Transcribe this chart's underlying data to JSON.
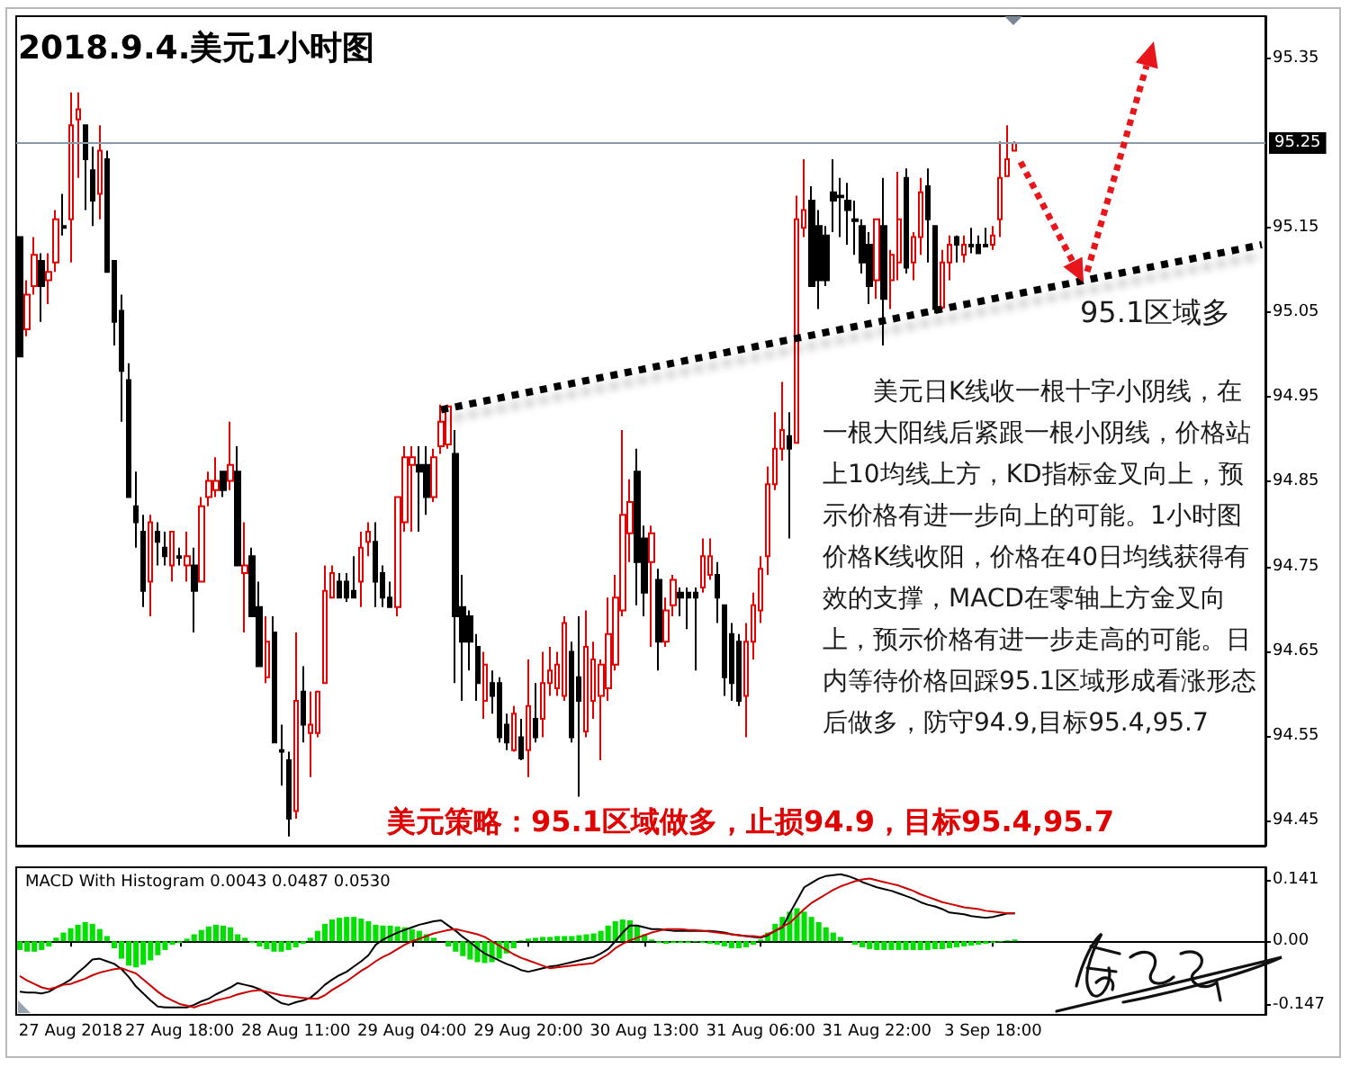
{
  "chart_data": [
    {
      "type": "candlestick",
      "title": "2018.9.4.美元1小时图",
      "categories": [
        null,
        null,
        null,
        null,
        null,
        null,
        null,
        null,
        null,
        null,
        null,
        null,
        null,
        null,
        null,
        null,
        null,
        null,
        null,
        null,
        null,
        null,
        null,
        null,
        null,
        null,
        null,
        null,
        null,
        null,
        null,
        null,
        null,
        null,
        null,
        null,
        null,
        null,
        null,
        null,
        null,
        null,
        null,
        null,
        null,
        null,
        null,
        null,
        null,
        null,
        null,
        null,
        null,
        null,
        null,
        null,
        null,
        null,
        null,
        null,
        null,
        null,
        null,
        null,
        null,
        null,
        null,
        null,
        null,
        null,
        null,
        null,
        null,
        null,
        null,
        null,
        null,
        null,
        null,
        null,
        null,
        null,
        null,
        null,
        null,
        null,
        null,
        null,
        null,
        null,
        null,
        null,
        null,
        null,
        null,
        null,
        null,
        null,
        null,
        null,
        null,
        null,
        null,
        null,
        null,
        null,
        null,
        null,
        null,
        null,
        null,
        null,
        null,
        null,
        null,
        null,
        null,
        null,
        null,
        null,
        null,
        null,
        null,
        null,
        null,
        null,
        null,
        null,
        null,
        null,
        null,
        null,
        null,
        null,
        null,
        null,
        null,
        null,
        null,
        null,
        null,
        null,
        null,
        null,
        null,
        null,
        null,
        null,
        null,
        null,
        null,
        null,
        null,
        null,
        null,
        null,
        null,
        null,
        null,
        null,
        null,
        null,
        null,
        null,
        null,
        null,
        null,
        null,
        null,
        null,
        null,
        null
      ],
      "ylim": [
        94.42,
        95.4
      ],
      "yticks": [
        95.35,
        95.15,
        95.05,
        94.95,
        94.85,
        94.75,
        94.65,
        94.55,
        94.45
      ],
      "ohlc": [
        [
          95.139,
          95.139,
          94.998,
          94.998
        ],
        [
          95.03,
          95.088,
          95.022,
          95.071
        ],
        [
          95.081,
          95.139,
          95.071,
          95.118
        ],
        [
          95.111,
          95.12,
          95.039,
          95.081
        ],
        [
          95.088,
          95.12,
          95.06,
          95.098
        ],
        [
          95.109,
          95.171,
          95.098,
          95.16
        ],
        [
          95.152,
          95.19,
          95.141,
          95.15
        ],
        [
          95.16,
          95.31,
          95.109,
          95.271
        ],
        [
          95.278,
          95.31,
          95.209,
          95.29
        ],
        [
          95.271,
          95.271,
          95.171,
          95.231
        ],
        [
          95.218,
          95.246,
          95.152,
          95.182
        ],
        [
          95.19,
          95.271,
          95.16,
          95.241
        ],
        [
          95.231,
          95.241,
          95.098,
          95.098
        ],
        [
          95.111,
          95.111,
          95.011,
          95.039
        ],
        [
          95.052,
          95.071,
          94.921,
          94.981
        ],
        [
          94.97,
          94.99,
          94.832,
          94.832
        ],
        [
          94.821,
          94.862,
          94.772,
          94.802
        ],
        [
          94.791,
          94.811,
          94.702,
          94.721
        ],
        [
          94.732,
          94.811,
          94.691,
          94.802
        ],
        [
          94.791,
          94.802,
          94.751,
          94.779
        ],
        [
          94.772,
          94.791,
          94.751,
          94.762
        ],
        [
          94.751,
          94.791,
          94.732,
          94.791
        ],
        [
          94.762,
          94.772,
          94.751,
          94.76
        ],
        [
          94.751,
          94.791,
          94.732,
          94.762
        ],
        [
          94.751,
          94.772,
          94.672,
          94.721
        ],
        [
          94.732,
          94.832,
          94.732,
          94.821
        ],
        [
          94.832,
          94.862,
          94.821,
          94.851
        ],
        [
          94.84,
          94.879,
          94.832,
          94.851
        ],
        [
          94.862,
          94.862,
          94.832,
          94.84
        ],
        [
          94.851,
          94.921,
          94.84,
          94.87
        ],
        [
          94.862,
          94.892,
          94.751,
          94.751
        ],
        [
          94.742,
          94.802,
          94.672,
          94.751
        ],
        [
          94.762,
          94.772,
          94.691,
          94.691
        ],
        [
          94.702,
          94.732,
          94.632,
          94.632
        ],
        [
          94.619,
          94.691,
          94.612,
          94.661
        ],
        [
          94.672,
          94.691,
          94.542,
          94.542
        ],
        [
          94.533,
          94.563,
          94.491,
          94.531
        ],
        [
          94.521,
          94.531,
          94.431,
          94.452
        ],
        [
          94.461,
          94.672,
          94.452,
          94.591
        ],
        [
          94.602,
          94.632,
          94.542,
          94.563
        ],
        [
          94.553,
          94.602,
          94.501,
          94.563
        ],
        [
          94.553,
          94.602,
          94.548,
          94.602
        ],
        [
          94.612,
          94.751,
          94.612,
          94.721
        ],
        [
          94.713,
          94.751,
          94.713,
          94.742
        ],
        [
          94.732,
          94.742,
          94.713,
          94.713
        ],
        [
          94.732,
          94.742,
          94.708,
          94.713
        ],
        [
          94.721,
          94.762,
          94.713,
          94.713
        ],
        [
          94.732,
          94.791,
          94.702,
          94.772
        ],
        [
          94.779,
          94.802,
          94.762,
          94.791
        ],
        [
          94.779,
          94.802,
          94.702,
          94.732
        ],
        [
          94.742,
          94.751,
          94.702,
          94.713
        ],
        [
          94.713,
          94.732,
          94.702,
          94.702
        ],
        [
          94.702,
          94.832,
          94.691,
          94.832
        ],
        [
          94.802,
          94.892,
          94.791,
          94.879
        ],
        [
          94.87,
          94.892,
          94.791,
          94.879
        ],
        [
          94.87,
          94.892,
          94.791,
          94.862
        ],
        [
          94.87,
          94.892,
          94.811,
          94.832
        ],
        [
          94.832,
          94.889,
          94.826,
          94.879
        ],
        [
          94.892,
          94.941,
          94.883,
          94.921
        ],
        [
          94.894,
          94.941,
          94.889,
          94.939
        ],
        [
          94.883,
          94.911,
          94.612,
          94.691
        ],
        [
          94.702,
          94.74,
          94.591,
          94.661
        ],
        [
          94.691,
          94.698,
          94.627,
          94.661
        ],
        [
          94.655,
          94.67,
          94.591,
          94.612
        ],
        [
          94.591,
          94.649,
          94.57,
          94.634
        ],
        [
          94.612,
          94.627,
          94.576,
          94.597
        ],
        [
          94.612,
          94.619,
          94.542,
          94.548
        ],
        [
          94.563,
          94.576,
          94.533,
          94.542
        ],
        [
          94.533,
          94.585,
          94.531,
          94.576
        ],
        [
          94.548,
          94.57,
          94.521,
          94.523
        ],
        [
          94.533,
          94.64,
          94.501,
          94.585
        ],
        [
          94.57,
          94.612,
          94.542,
          94.548
        ],
        [
          94.57,
          94.649,
          94.548,
          94.612
        ],
        [
          94.612,
          94.655,
          94.597,
          94.627
        ],
        [
          94.606,
          94.649,
          94.597,
          94.634
        ],
        [
          94.597,
          94.691,
          94.591,
          94.683
        ],
        [
          94.649,
          94.661,
          94.542,
          94.548
        ],
        [
          94.619,
          94.691,
          94.478,
          94.591
        ],
        [
          94.555,
          94.698,
          94.548,
          94.655
        ],
        [
          94.591,
          94.661,
          94.57,
          94.64
        ],
        [
          94.597,
          94.64,
          94.521,
          94.634
        ],
        [
          94.606,
          94.713,
          94.591,
          94.67
        ],
        [
          94.634,
          94.74,
          94.627,
          94.713
        ],
        [
          94.698,
          94.911,
          94.691,
          94.811
        ],
        [
          94.789,
          94.853,
          94.755,
          94.826
        ],
        [
          94.862,
          94.889,
          94.704,
          94.755
        ],
        [
          94.783,
          94.798,
          94.691,
          94.719
        ],
        [
          94.755,
          94.798,
          94.655,
          94.789
        ],
        [
          94.734,
          94.747,
          94.627,
          94.661
        ],
        [
          94.661,
          94.713,
          94.655,
          94.698
        ],
        [
          94.704,
          94.74,
          94.691,
          94.734
        ],
        [
          94.719,
          94.725,
          94.691,
          94.713
        ],
        [
          94.719,
          94.725,
          94.676,
          94.713
        ],
        [
          94.719,
          94.725,
          94.627,
          94.713
        ],
        [
          94.725,
          94.783,
          94.719,
          94.762
        ],
        [
          94.74,
          94.783,
          94.734,
          94.762
        ],
        [
          94.74,
          94.755,
          94.683,
          94.713
        ],
        [
          94.704,
          94.704,
          94.597,
          94.619
        ],
        [
          94.67,
          94.683,
          94.591,
          94.612
        ],
        [
          94.661,
          94.67,
          94.585,
          94.591
        ],
        [
          94.597,
          94.683,
          94.548,
          94.661
        ],
        [
          94.661,
          94.719,
          94.64,
          94.704
        ],
        [
          94.698,
          94.762,
          94.683,
          94.747
        ],
        [
          94.762,
          94.868,
          94.74,
          94.847
        ],
        [
          94.847,
          94.932,
          94.84,
          94.889
        ],
        [
          94.889,
          94.968,
          94.875,
          94.911
        ],
        [
          94.904,
          94.932,
          94.783,
          94.889
        ],
        [
          94.896,
          95.188,
          94.896,
          95.16
        ],
        [
          95.15,
          95.231,
          95.139,
          95.171
        ],
        [
          95.182,
          95.199,
          95.081,
          95.081
        ],
        [
          95.152,
          95.171,
          95.054,
          95.088
        ],
        [
          95.141,
          95.152,
          95.081,
          95.088
        ],
        [
          95.192,
          95.231,
          95.145,
          95.182
        ],
        [
          95.188,
          95.209,
          95.139,
          95.186
        ],
        [
          95.182,
          95.203,
          95.13,
          95.171
        ],
        [
          95.16,
          95.182,
          95.118,
          95.158
        ],
        [
          95.152,
          95.16,
          95.096,
          95.109
        ],
        [
          95.13,
          95.145,
          95.06,
          95.081
        ],
        [
          95.088,
          95.16,
          95.066,
          95.16
        ],
        [
          95.152,
          95.209,
          95.011,
          95.066
        ],
        [
          95.088,
          95.124,
          95.054,
          95.118
        ],
        [
          95.109,
          95.216,
          95.088,
          95.16
        ],
        [
          95.209,
          95.22,
          95.096,
          95.103
        ],
        [
          95.109,
          95.145,
          95.088,
          95.139
        ],
        [
          95.139,
          95.209,
          95.118,
          95.192
        ],
        [
          95.199,
          95.22,
          95.109,
          95.16
        ],
        [
          95.152,
          95.152,
          95.049,
          95.054
        ],
        [
          95.056,
          95.124,
          95.054,
          95.109
        ],
        [
          95.109,
          95.141,
          95.088,
          95.13
        ],
        [
          95.139,
          95.141,
          95.109,
          95.13
        ],
        [
          95.118,
          95.141,
          95.109,
          95.13
        ],
        [
          95.13,
          95.15,
          95.12,
          95.128
        ],
        [
          95.13,
          95.141,
          95.12,
          95.12
        ],
        [
          95.13,
          95.15,
          95.128,
          95.128
        ],
        [
          95.13,
          95.152,
          95.124,
          95.141
        ],
        [
          95.16,
          95.252,
          95.139,
          95.209
        ],
        [
          95.211,
          95.271,
          95.211,
          95.231
        ],
        [
          95.241,
          95.252,
          95.241,
          95.25
        ],
        null,
        null,
        null,
        null,
        null,
        null,
        null,
        null,
        null,
        null,
        null,
        null,
        null,
        null,
        null,
        null,
        null,
        null,
        null,
        null,
        null,
        null,
        null,
        null,
        null,
        null,
        null,
        null,
        null,
        null,
        null,
        null,
        null,
        null
      ],
      "colors": [
        "#000000",
        "#e00000",
        "#e00000",
        "#000000",
        "#e00000",
        "#e00000",
        "#000000",
        "#e00000",
        "#e00000",
        "#000000",
        "#000000",
        "#e00000",
        "#000000",
        "#000000",
        "#000000",
        "#000000",
        "#000000",
        "#000000",
        "#e00000",
        "#000000",
        "#000000",
        "#e00000",
        "#000000",
        "#e00000",
        "#000000",
        "#e00000",
        "#e00000",
        "#e00000",
        "#000000",
        "#e00000",
        "#000000",
        "#e00000",
        "#000000",
        "#000000",
        "#e00000",
        "#000000",
        "#000000",
        "#000000",
        "#e00000",
        "#000000",
        "#e00000",
        "#e00000",
        "#e00000",
        "#e00000",
        "#000000",
        "#000000",
        "#000000",
        "#e00000",
        "#e00000",
        "#000000",
        "#000000",
        "#000000",
        "#e00000",
        "#e00000",
        "#e00000",
        "#000000",
        "#000000",
        "#e00000",
        "#e00000",
        "#e00000",
        "#000000",
        "#000000",
        "#000000",
        "#000000",
        "#e00000",
        "#000000",
        "#000000",
        "#000000",
        "#e00000",
        "#000000",
        "#e00000",
        "#000000",
        "#e00000",
        "#e00000",
        "#e00000",
        "#e00000",
        "#000000",
        "#000000",
        "#e00000",
        "#e00000",
        "#e00000",
        "#e00000",
        "#e00000",
        "#e00000",
        "#e00000",
        "#000000",
        "#000000",
        "#e00000",
        "#000000",
        "#e00000",
        "#e00000",
        "#000000",
        "#000000",
        "#000000",
        "#e00000",
        "#e00000",
        "#000000",
        "#000000",
        "#000000",
        "#000000",
        "#e00000",
        "#e00000",
        "#e00000",
        "#e00000",
        "#e00000",
        "#e00000",
        "#000000",
        "#e00000",
        "#e00000",
        "#000000",
        "#000000",
        "#000000",
        "#000000",
        "#000000",
        "#000000",
        "#000000",
        "#000000",
        "#000000",
        "#e00000",
        "#000000",
        "#e00000",
        "#e00000",
        "#000000",
        "#e00000",
        "#e00000",
        "#000000",
        "#000000",
        "#e00000",
        "#e00000",
        "#000000",
        "#e00000",
        "#000000",
        "#000000",
        "#000000",
        "#e00000",
        "#e00000",
        "#e00000",
        "#e00000",
        null,
        null,
        null,
        null,
        null,
        null,
        null,
        null,
        null,
        null,
        null,
        null,
        null,
        null,
        null,
        null,
        null,
        null,
        null,
        null,
        null,
        null,
        null,
        null,
        null,
        null,
        null,
        null,
        null,
        null,
        null,
        null,
        null,
        null
      ],
      "series": [
        {
          "type": "line",
          "color": "#000000",
          "line_style": "dotted",
          "values": [
            null,
            null,
            null,
            null,
            null,
            null,
            null,
            null,
            null,
            null,
            null,
            null,
            null,
            null,
            null,
            null,
            null,
            null,
            null,
            null,
            null,
            null,
            null,
            null,
            null,
            null,
            null,
            null,
            null,
            null,
            null,
            null,
            null,
            null,
            null,
            null,
            null,
            null,
            null,
            null,
            null,
            null,
            null,
            null,
            null,
            null,
            null,
            null,
            null,
            null,
            null,
            null,
            null,
            null,
            null,
            null,
            null,
            null,
            94.935,
            null,
            null,
            null,
            null,
            null,
            null,
            null,
            null,
            null,
            null,
            null,
            null,
            null,
            null,
            null,
            null,
            null,
            null,
            null,
            null,
            null,
            null,
            null,
            null,
            null,
            null,
            null,
            null,
            null,
            null,
            null,
            null,
            null,
            null,
            null,
            null,
            null,
            null,
            null,
            null,
            null,
            null,
            null,
            null,
            null,
            null,
            null,
            null,
            null,
            null,
            null,
            null,
            null,
            null,
            null,
            null,
            null,
            null,
            null,
            null,
            null,
            null,
            null,
            null,
            null,
            null,
            null,
            null,
            null,
            null,
            null,
            null,
            null,
            null,
            null,
            null,
            null,
            null,
            null,
            null,
            null,
            null,
            null,
            null,
            null,
            null,
            null,
            null,
            null,
            null,
            null,
            null,
            null,
            null,
            null,
            null,
            null,
            null,
            null,
            null,
            null,
            null,
            null,
            null,
            null,
            null,
            null,
            null,
            null,
            null,
            null,
            null,
            95.13
          ]
        }
      ],
      "ref_lines": [
        {
          "axis": "y",
          "value": 95.25,
          "label": "95.25",
          "color": "#8a99a6"
        }
      ],
      "annotations": [
        "95.1区域多",
        "　　美元日K线收一根十字小阴线，在一根大阳线后紧跟一根小阴线，价格站上10均线上方，KD指标金叉向上，预示价格有进一步向上的可能。1小时图价格K线收阳，价格在40日均线获得有效的支撑，MACD在零轴上方金叉向上，预示价格有进一步走高的可能。日内等待价格回踩95.1区域形成看涨形态后做多，防守94.9,目标95.4,95.7",
        "美元策略：95.1区域做多，止损94.9，目标95.4,95.7"
      ]
    },
    {
      "type": "bar",
      "title": "MACD With Histogram 0.0043 0.0487 0.0530",
      "categories": [
        null,
        null,
        null,
        null,
        null,
        null,
        null,
        "27 Aug 2018",
        null,
        null,
        null,
        null,
        null,
        null,
        null,
        null,
        null,
        null,
        null,
        null,
        null,
        null,
        "27 Aug 18:00",
        null,
        null,
        null,
        null,
        null,
        null,
        null,
        null,
        null,
        null,
        null,
        null,
        null,
        null,
        null,
        "28 Aug 11:00",
        null,
        null,
        null,
        null,
        null,
        null,
        null,
        null,
        null,
        null,
        null,
        null,
        null,
        null,
        null,
        "29 Aug 04:00",
        null,
        null,
        null,
        null,
        null,
        null,
        null,
        null,
        null,
        null,
        null,
        null,
        null,
        null,
        null,
        "29 Aug 20:00",
        null,
        null,
        null,
        null,
        null,
        null,
        null,
        null,
        null,
        null,
        null,
        null,
        null,
        null,
        null,
        "30 Aug 13:00",
        null,
        null,
        null,
        null,
        null,
        null,
        null,
        null,
        null,
        null,
        null,
        null,
        null,
        null,
        null,
        "31 Aug 06:00",
        null,
        null,
        null,
        null,
        null,
        null,
        null,
        null,
        null,
        null,
        null,
        null,
        null,
        null,
        null,
        "31 Aug 22:00",
        null,
        null,
        null,
        null,
        null,
        null,
        null,
        null,
        null,
        null,
        null,
        null,
        null,
        null,
        null,
        "3 Sep 18:00",
        null,
        null,
        null,
        null,
        null,
        null,
        null,
        null,
        null,
        null,
        null,
        null,
        null,
        null,
        null,
        null,
        null,
        null,
        null,
        null,
        null,
        null,
        null,
        null,
        null,
        null,
        null,
        null,
        null,
        null,
        null,
        null,
        null,
        null,
        null,
        null,
        null
      ],
      "ylim": [
        -0.169,
        0.17
      ],
      "yticks": [
        0.141,
        {
          "value": 0,
          "label": "0.00"
        },
        -0.147
      ],
      "series": [
        {
          "color": "#00e000",
          "values": [
            -0.02,
            -0.024,
            -0.024,
            -0.02,
            -0.012,
            0.008,
            0.02,
            0.03,
            0.038,
            0.044,
            0.04,
            0.028,
            0.012,
            -0.016,
            -0.04,
            -0.056,
            -0.06,
            -0.054,
            -0.044,
            -0.032,
            -0.02,
            -0.008,
            -0.004,
            0.006,
            0.016,
            0.026,
            0.034,
            0.038,
            0.036,
            0.032,
            0.016,
            0.008,
            -0.004,
            -0.012,
            -0.018,
            -0.024,
            -0.024,
            -0.02,
            -0.014,
            -0.006,
            0.008,
            0.024,
            0.04,
            0.05,
            0.054,
            0.056,
            0.056,
            0.052,
            0.046,
            0.038,
            0.036,
            0.036,
            0.034,
            0.032,
            0.028,
            0.024,
            0.016,
            0.008,
            0,
            -0.012,
            -0.024,
            -0.034,
            -0.042,
            -0.048,
            -0.05,
            -0.048,
            -0.04,
            -0.028,
            -0.016,
            0.002,
            0.006,
            0.008,
            0.01,
            0.01,
            0.012,
            0.012,
            0.012,
            0.014,
            0.016,
            0.018,
            0.024,
            0.036,
            0.046,
            0.05,
            0.048,
            0.036,
            0.016,
            0.004,
            -0.004,
            -0.006,
            -0.004,
            -0.004,
            -0.004,
            -0.002,
            -0.004,
            -0.006,
            -0.008,
            -0.012,
            -0.016,
            -0.016,
            -0.014,
            -0.008,
            0.004,
            0.02,
            0.04,
            0.056,
            0.068,
            0.076,
            0.068,
            0.056,
            0.044,
            0.032,
            0.02,
            0.01,
            0,
            -0.008,
            -0.014,
            -0.018,
            -0.02,
            -0.02,
            -0.02,
            -0.02,
            -0.02,
            -0.02,
            -0.02,
            -0.02,
            -0.018,
            -0.018,
            -0.016,
            -0.014,
            -0.012,
            -0.01,
            -0.008,
            -0.006,
            -0.004,
            -0.002,
            0.002,
            0.004,
            null,
            null,
            null,
            null,
            null,
            null,
            null,
            null,
            null,
            null,
            null,
            null,
            null,
            null,
            null,
            null,
            null,
            null,
            null,
            null,
            null,
            null,
            null,
            null,
            null,
            null,
            null,
            null,
            null,
            null,
            null,
            null,
            null,
            null
          ]
        },
        {
          "type": "line",
          "color": "#000000",
          "values": [
            -0.116,
            -0.118,
            -0.118,
            -0.12,
            -0.116,
            -0.106,
            -0.098,
            -0.088,
            -0.072,
            -0.058,
            -0.042,
            -0.04,
            -0.046,
            -0.052,
            -0.064,
            -0.082,
            -0.104,
            -0.12,
            -0.136,
            -0.15,
            -0.152,
            -0.152,
            -0.152,
            -0.152,
            -0.146,
            -0.138,
            -0.132,
            -0.122,
            -0.114,
            -0.106,
            -0.096,
            -0.1,
            -0.104,
            -0.11,
            -0.12,
            -0.132,
            -0.142,
            -0.146,
            -0.14,
            -0.136,
            -0.13,
            -0.116,
            -0.1,
            -0.088,
            -0.078,
            -0.07,
            -0.058,
            -0.046,
            -0.032,
            -0.008,
            0.004,
            0.012,
            0.02,
            0.026,
            0.032,
            0.038,
            0.042,
            0.046,
            0.048,
            0.036,
            0.024,
            0.01,
            -0.002,
            -0.016,
            -0.028,
            -0.036,
            -0.044,
            -0.052,
            -0.058,
            -0.066,
            -0.07,
            -0.066,
            -0.062,
            -0.058,
            -0.056,
            -0.052,
            -0.048,
            -0.044,
            -0.04,
            -0.036,
            -0.028,
            -0.018,
            0,
            0.02,
            0.036,
            0.036,
            0.032,
            0.028,
            0.028,
            0.026,
            0.024,
            0.024,
            0.024,
            0.024,
            0.024,
            0.024,
            0.022,
            0.02,
            0.016,
            0.014,
            0.012,
            0.01,
            0.008,
            0.014,
            0.024,
            0.032,
            0.064,
            0.094,
            0.124,
            0.134,
            0.144,
            0.15,
            0.152,
            0.154,
            0.15,
            0.144,
            0.136,
            0.13,
            0.124,
            0.12,
            0.116,
            0.11,
            0.104,
            0.098,
            0.09,
            0.084,
            0.08,
            0.074,
            0.066,
            0.064,
            0.062,
            0.058,
            0.056,
            0.054,
            0.056,
            0.06,
            0.064,
            0.064,
            null,
            null,
            null,
            null,
            null,
            null,
            null,
            null,
            null,
            null,
            null,
            null,
            null,
            null,
            null,
            null,
            null,
            null,
            null,
            null,
            null,
            null,
            null,
            null,
            null,
            null,
            null,
            null,
            null,
            null,
            null,
            null,
            null,
            null
          ]
        },
        {
          "type": "line",
          "color": "#cc0000",
          "values": [
            -0.08,
            -0.09,
            -0.098,
            -0.106,
            -0.11,
            -0.106,
            -0.1,
            -0.098,
            -0.092,
            -0.086,
            -0.078,
            -0.072,
            -0.068,
            -0.064,
            -0.062,
            -0.068,
            -0.074,
            -0.088,
            -0.102,
            -0.116,
            -0.128,
            -0.136,
            -0.144,
            -0.148,
            -0.152,
            -0.146,
            -0.142,
            -0.136,
            -0.132,
            -0.128,
            -0.122,
            -0.118,
            -0.114,
            -0.112,
            -0.116,
            -0.12,
            -0.124,
            -0.126,
            -0.128,
            -0.13,
            -0.132,
            -0.132,
            -0.124,
            -0.112,
            -0.102,
            -0.092,
            -0.08,
            -0.068,
            -0.058,
            -0.046,
            -0.036,
            -0.028,
            -0.018,
            -0.008,
            0,
            0.006,
            0.012,
            0.018,
            0.022,
            0.026,
            0.028,
            0.024,
            0.02,
            0.016,
            0.01,
            0,
            -0.01,
            -0.02,
            -0.03,
            -0.038,
            -0.044,
            -0.05,
            -0.056,
            -0.062,
            -0.06,
            -0.058,
            -0.056,
            -0.054,
            -0.052,
            -0.05,
            -0.04,
            -0.03,
            -0.016,
            -0.006,
            0.002,
            0.008,
            0.014,
            0.02,
            0.024,
            0.028,
            0.028,
            0.028,
            0.026,
            0.026,
            0.024,
            0.022,
            0.02,
            0.018,
            0.016,
            0.014,
            0.012,
            0.012,
            0.01,
            0.016,
            0.024,
            0.034,
            0.042,
            0.058,
            0.074,
            0.088,
            0.098,
            0.108,
            0.118,
            0.126,
            0.132,
            0.138,
            0.142,
            0.144,
            0.14,
            0.136,
            0.132,
            0.128,
            0.122,
            0.116,
            0.108,
            0.102,
            0.096,
            0.09,
            0.086,
            0.082,
            0.078,
            0.076,
            0.074,
            0.07,
            0.068,
            0.066,
            0.064,
            0.064,
            null,
            null,
            null,
            null,
            null,
            null,
            null,
            null,
            null,
            null,
            null,
            null,
            null,
            null,
            null,
            null,
            null,
            null,
            null,
            null,
            null,
            null,
            null,
            null,
            null,
            null,
            null,
            null,
            null,
            null,
            null,
            null,
            null,
            null
          ]
        }
      ]
    }
  ]
}
